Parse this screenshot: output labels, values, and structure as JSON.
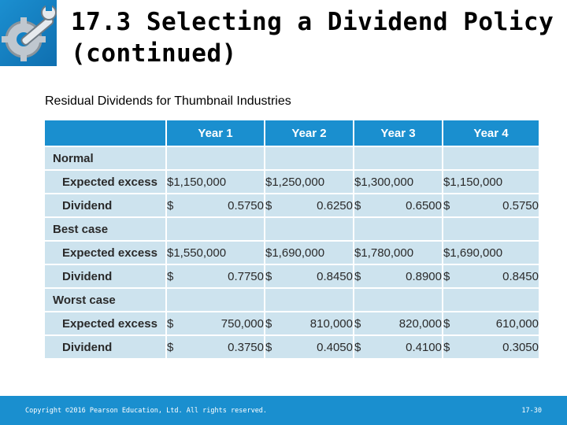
{
  "slide": {
    "title_line1": "17.3  Selecting a Dividend Policy",
    "title_line2": "(continued)",
    "caption": "Residual Dividends for Thumbnail Industries",
    "logo_icon": "wrench-gear-icon"
  },
  "table": {
    "headers": [
      "",
      "Year 1",
      "Year 2",
      "Year 3",
      "Year 4"
    ],
    "rows": [
      {
        "label": "Normal",
        "type": "section",
        "cells": []
      },
      {
        "label": "Expected excess",
        "type": "sub",
        "cells": [
          {
            "cur": "",
            "amt": "$1,150,000"
          },
          {
            "cur": "",
            "amt": "$1,250,000"
          },
          {
            "cur": "",
            "amt": "$1,300,000"
          },
          {
            "cur": "",
            "amt": "$1,150,000"
          }
        ]
      },
      {
        "label": "Dividend",
        "type": "sub",
        "cells": [
          {
            "cur": "$",
            "amt": "0.5750"
          },
          {
            "cur": "$",
            "amt": "0.6250"
          },
          {
            "cur": "$",
            "amt": "0.6500"
          },
          {
            "cur": "$",
            "amt": "0.5750"
          }
        ]
      },
      {
        "label": "Best case",
        "type": "section",
        "cells": []
      },
      {
        "label": "Expected excess",
        "type": "sub",
        "cells": [
          {
            "cur": "",
            "amt": "$1,550,000"
          },
          {
            "cur": "",
            "amt": "$1,690,000"
          },
          {
            "cur": "",
            "amt": "$1,780,000"
          },
          {
            "cur": "",
            "amt": "$1,690,000"
          }
        ]
      },
      {
        "label": "Dividend",
        "type": "sub",
        "cells": [
          {
            "cur": "$",
            "amt": "0.7750"
          },
          {
            "cur": "$",
            "amt": "0.8450"
          },
          {
            "cur": "$",
            "amt": "0.8900"
          },
          {
            "cur": "$",
            "amt": "0.8450"
          }
        ]
      },
      {
        "label": "Worst case",
        "type": "section",
        "cells": []
      },
      {
        "label": "Expected excess",
        "type": "sub",
        "cells": [
          {
            "cur": "$",
            "amt": "750,000"
          },
          {
            "cur": "$",
            "amt": "810,000"
          },
          {
            "cur": "$",
            "amt": "820,000"
          },
          {
            "cur": "$",
            "amt": "610,000"
          }
        ]
      },
      {
        "label": "Dividend",
        "type": "sub",
        "cells": [
          {
            "cur": "$",
            "amt": "0.3750"
          },
          {
            "cur": "$",
            "amt": "0.4050"
          },
          {
            "cur": "$",
            "amt": "0.4100"
          },
          {
            "cur": "$",
            "amt": "0.3050"
          }
        ]
      }
    ]
  },
  "footer": {
    "copyright": "Copyright ©2016 Pearson Education, Ltd. All rights reserved.",
    "page": "17-30"
  },
  "colors": {
    "accent": "#1a8fcf",
    "cell_bg": "#cde3ee"
  }
}
